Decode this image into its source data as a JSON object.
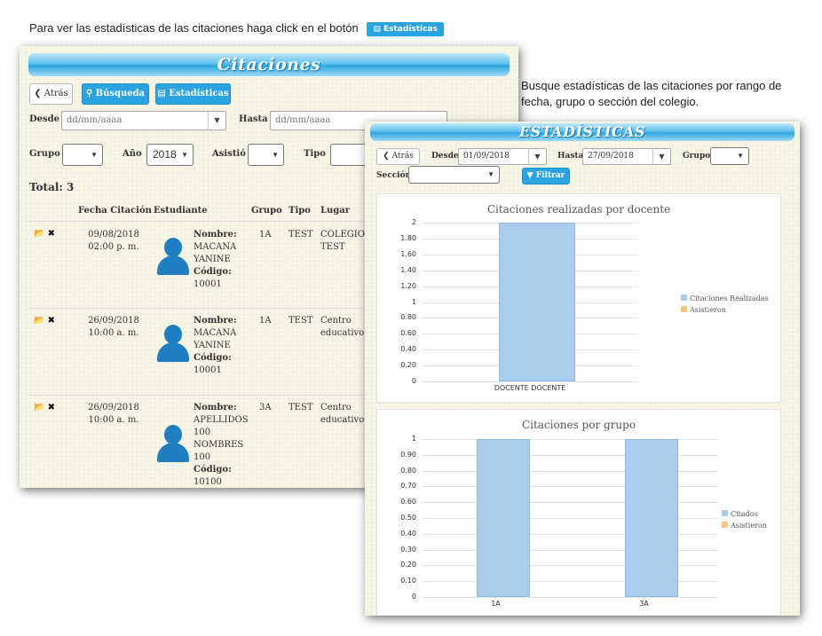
{
  "captions": {
    "top": "Para ver las estadísticas de las citaciones haga click en el botón",
    "top_button": "Estadísticas",
    "right": "Busque estadísticas de las citaciones por rango de fecha, grupo o sección del colegio."
  },
  "citaciones": {
    "title": "Citaciones",
    "back": "Atrás",
    "search": "Búsqueda",
    "stats": "Estadísticas",
    "desde_label": "Desde",
    "desde_placeholder": "dd/mm/aaaa",
    "hasta_label": "Hasta",
    "hasta_placeholder": "dd/mm/aaaa",
    "grupo_label": "Grupo",
    "anio_label": "Año",
    "anio_value": "2018",
    "asistio_label": "Asistió",
    "tipo_label": "Tipo",
    "total": "Total: 3",
    "columns": [
      "Fecha Citación",
      "Estudiante",
      "Grupo",
      "Tipo",
      "Lugar"
    ],
    "rows": [
      {
        "fecha": "09/08/2018",
        "hora": "02:00 p. m.",
        "nombre_label": "Nombre:",
        "nombre": [
          "MACANA",
          "YANINE"
        ],
        "codigo_label": "Código:",
        "codigo": "10001",
        "grupo": "1A",
        "tipo": "TEST",
        "lugar": [
          "COLEGIO",
          "TEST"
        ]
      },
      {
        "fecha": "26/09/2018",
        "hora": "10:00 a. m.",
        "nombre_label": "Nombre:",
        "nombre": [
          "MACANA",
          "YANINE"
        ],
        "codigo_label": "Código:",
        "codigo": "10001",
        "grupo": "1A",
        "tipo": "TEST",
        "lugar": [
          "Centro",
          "educativo"
        ]
      },
      {
        "fecha": "26/09/2018",
        "hora": "10:00 a. m.",
        "nombre_label": "Nombre:",
        "nombre": [
          "APELLIDOS",
          "100",
          "NOMBRES",
          "100"
        ],
        "codigo_label": "Código:",
        "codigo": "10100",
        "grupo": "3A",
        "tipo": "TEST",
        "lugar": [
          "Centro",
          "educativo"
        ]
      }
    ]
  },
  "estadisticas": {
    "title": "ESTADÍSTICAS",
    "back": "Atrás",
    "desde_label": "Desde",
    "desde_value": "01/09/2018",
    "hasta_label": "Hasta",
    "hasta_value": "27/09/2018",
    "grupo_label": "Grupo",
    "seccion_label": "Sección",
    "filter": "Filtrar"
  },
  "chart_data": [
    {
      "type": "bar",
      "title": "Citaciones realizadas por docente",
      "categories": [
        "DOCENTE DOCENTE"
      ],
      "series": [
        {
          "name": "Citaciones Realizadas",
          "values": [
            2
          ],
          "color": "#a9cdec"
        },
        {
          "name": "Asistieron",
          "values": [
            0
          ],
          "color": "#f7c67a"
        }
      ],
      "ylim": [
        0,
        2
      ],
      "yticks": [
        "0",
        "0.20",
        "0.40",
        "0.60",
        "0.80",
        "1",
        "1.20",
        "1.40",
        "1.60",
        "1.80",
        "2"
      ],
      "legend": "right"
    },
    {
      "type": "bar",
      "title": "Citaciones por grupo",
      "categories": [
        "1A",
        "3A"
      ],
      "series": [
        {
          "name": "Citados",
          "values": [
            1,
            1
          ],
          "color": "#a9cdec"
        },
        {
          "name": "Asistieron",
          "values": [
            0,
            0
          ],
          "color": "#f7c67a"
        }
      ],
      "ylim": [
        0,
        1
      ],
      "yticks": [
        "0",
        "0.10",
        "0.20",
        "0.30",
        "0.40",
        "0.50",
        "0.60",
        "0.70",
        "0.80",
        "0.90",
        "1"
      ],
      "legend": "right"
    }
  ]
}
